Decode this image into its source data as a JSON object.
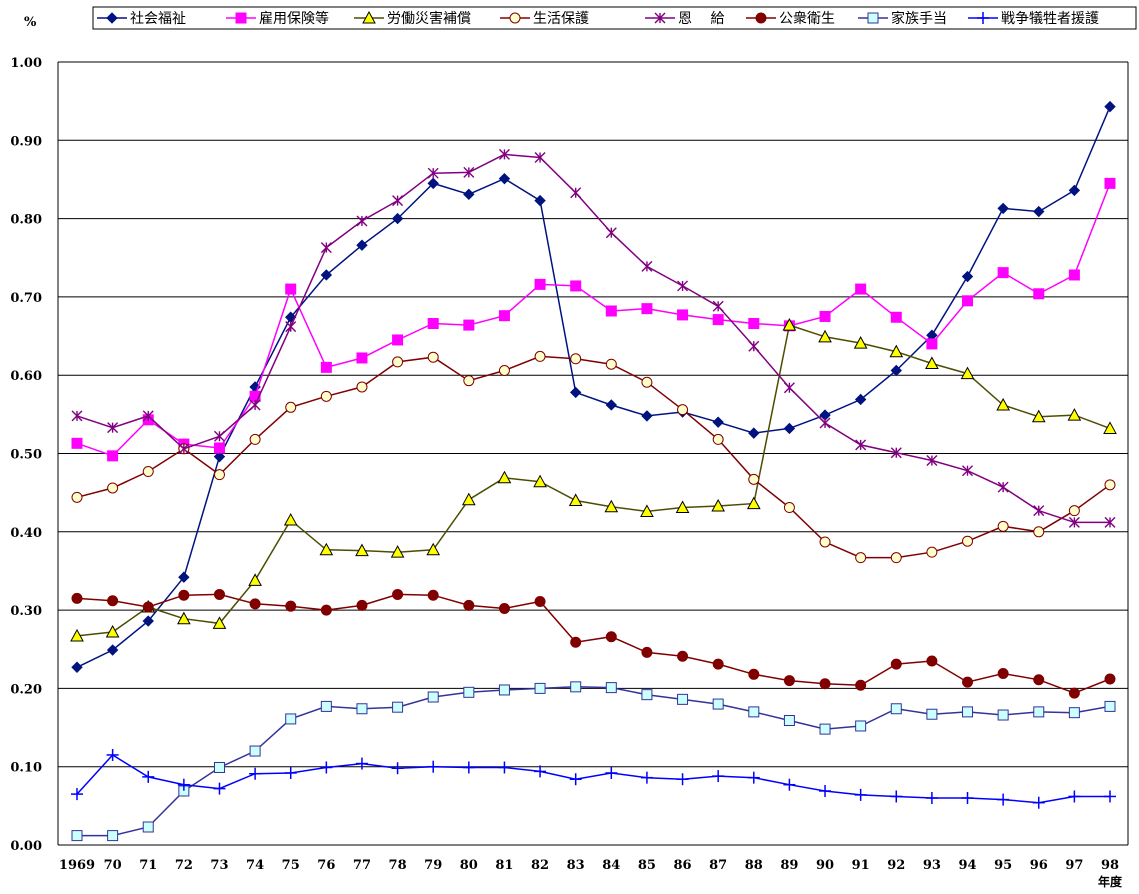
{
  "chart_data": {
    "type": "line",
    "ylabel": "%",
    "xlabel": "年度",
    "ylim": [
      0,
      1.0
    ],
    "yticks": [
      "0.00",
      "0.10",
      "0.20",
      "0.30",
      "0.40",
      "0.50",
      "0.60",
      "0.70",
      "0.80",
      "0.90",
      "1.00"
    ],
    "categories": [
      "1969",
      "70",
      "71",
      "72",
      "73",
      "74",
      "75",
      "76",
      "77",
      "78",
      "79",
      "80",
      "81",
      "82",
      "83",
      "84",
      "85",
      "86",
      "87",
      "88",
      "89",
      "90",
      "91",
      "92",
      "93",
      "94",
      "95",
      "96",
      "97",
      "98"
    ],
    "grid": "horizontal",
    "legend_position": "top",
    "series": [
      {
        "name": "社会福祉",
        "color": "#00137f",
        "marker": "diamond",
        "values": [
          0.227,
          0.249,
          0.286,
          0.342,
          0.496,
          0.585,
          0.674,
          0.728,
          0.766,
          0.8,
          0.845,
          0.831,
          0.851,
          0.823,
          0.578,
          0.562,
          0.548,
          0.553,
          0.54,
          0.526,
          0.532,
          0.549,
          0.569,
          0.606,
          0.651,
          0.726,
          0.813,
          0.809,
          0.836,
          0.943
        ]
      },
      {
        "name": "雇用保険等",
        "color": "#ff00ff",
        "marker": "square",
        "values": [
          0.513,
          0.497,
          0.543,
          0.512,
          0.507,
          0.573,
          0.71,
          0.61,
          0.622,
          0.645,
          0.666,
          0.664,
          0.676,
          0.716,
          0.714,
          0.682,
          0.685,
          0.677,
          0.671,
          0.666,
          0.663,
          0.675,
          0.71,
          0.674,
          0.64,
          0.695,
          0.731,
          0.704,
          0.728,
          0.845
        ]
      },
      {
        "name": "労働災害補償",
        "color": "#4d4d00",
        "marker": "triangle",
        "values": [
          0.267,
          0.272,
          0.304,
          0.289,
          0.283,
          0.338,
          0.415,
          0.377,
          0.376,
          0.374,
          0.377,
          0.441,
          0.469,
          0.464,
          0.44,
          0.432,
          0.426,
          0.431,
          0.433,
          0.436,
          0.664,
          0.649,
          0.641,
          0.63,
          0.615,
          0.602,
          0.562,
          0.547,
          0.549,
          0.532
        ]
      },
      {
        "name": "生活保護",
        "color": "#800000",
        "marker": "circle-open",
        "values": [
          0.444,
          0.456,
          0.477,
          0.506,
          0.473,
          0.518,
          0.559,
          0.573,
          0.585,
          0.617,
          0.623,
          0.593,
          0.606,
          0.624,
          0.621,
          0.614,
          0.591,
          0.556,
          0.518,
          0.467,
          0.431,
          0.387,
          0.367,
          0.367,
          0.374,
          0.388,
          0.407,
          0.4,
          0.427,
          0.46
        ]
      },
      {
        "name": "恩　 給",
        "color": "#800080",
        "marker": "asterisk",
        "values": [
          0.548,
          0.533,
          0.548,
          0.506,
          0.522,
          0.562,
          0.662,
          0.763,
          0.797,
          0.823,
          0.858,
          0.859,
          0.882,
          0.878,
          0.833,
          0.782,
          0.739,
          0.714,
          0.688,
          0.637,
          0.584,
          0.539,
          0.511,
          0.501,
          0.491,
          0.478,
          0.457,
          0.427,
          0.412,
          0.412
        ]
      },
      {
        "name": "公衆衛生",
        "color": "#800000",
        "marker": "circle-filled",
        "values": [
          0.315,
          0.312,
          0.304,
          0.319,
          0.32,
          0.308,
          0.305,
          0.3,
          0.306,
          0.32,
          0.319,
          0.306,
          0.302,
          0.311,
          0.259,
          0.266,
          0.246,
          0.241,
          0.231,
          0.218,
          0.21,
          0.206,
          0.204,
          0.231,
          0.235,
          0.208,
          0.219,
          0.211,
          0.194,
          0.212
        ]
      },
      {
        "name": "家族手当",
        "color": "#333399",
        "marker": "square-open",
        "values": [
          0.012,
          0.012,
          0.023,
          0.069,
          0.099,
          0.12,
          0.161,
          0.177,
          0.174,
          0.176,
          0.189,
          0.195,
          0.198,
          0.2,
          0.202,
          0.201,
          0.192,
          0.186,
          0.18,
          0.17,
          0.159,
          0.148,
          0.152,
          0.174,
          0.167,
          0.17,
          0.166,
          0.17,
          0.169,
          0.177
        ]
      },
      {
        "name": "戦争犠牲者援護",
        "color": "#0000ff",
        "marker": "plus",
        "values": [
          0.065,
          0.115,
          0.087,
          0.077,
          0.072,
          0.091,
          0.092,
          0.099,
          0.104,
          0.098,
          0.1,
          0.099,
          0.099,
          0.094,
          0.084,
          0.092,
          0.086,
          0.084,
          0.088,
          0.086,
          0.077,
          0.069,
          0.064,
          0.062,
          0.06,
          0.06,
          0.058,
          0.054,
          0.062,
          0.062
        ]
      }
    ]
  }
}
